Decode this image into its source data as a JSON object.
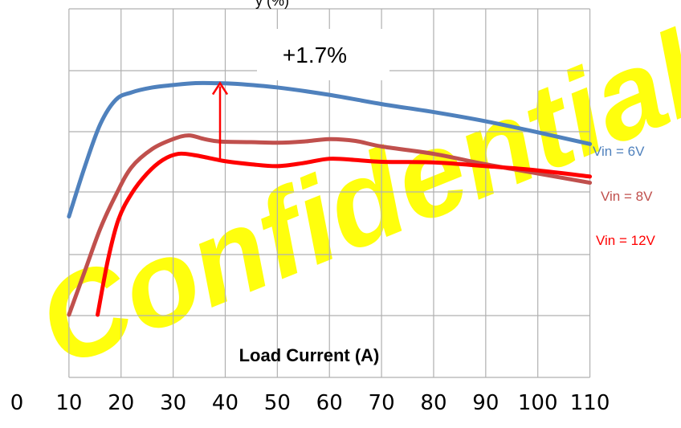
{
  "chart_data": {
    "type": "line",
    "title": "",
    "xlabel": "Load Current (A)",
    "ylabel_fragment": "y (%)",
    "watermark": "Confidential",
    "xlim": [
      0,
      110
    ],
    "x_ticks": [
      "0",
      "10",
      "20",
      "30",
      "40",
      "50",
      "60",
      "70",
      "80",
      "90",
      "100",
      "110"
    ],
    "grid": true,
    "series": [
      {
        "name": "Vin = 6V",
        "color": "#4f81bd",
        "x": [
          10,
          13,
          16,
          19,
          22,
          26,
          30,
          34,
          38,
          42,
          50,
          60,
          70,
          80,
          90,
          100,
          110
        ],
        "y": [
          -0.4,
          0.4,
          1.1,
          1.5,
          1.62,
          1.7,
          1.74,
          1.77,
          1.77,
          1.76,
          1.7,
          1.58,
          1.43,
          1.3,
          1.15,
          0.97,
          0.78
        ]
      },
      {
        "name": "Vin = 8V",
        "color": "#c0504d",
        "x": [
          10,
          13,
          16,
          19,
          22,
          26,
          30,
          33,
          36,
          39,
          45,
          50,
          55,
          60,
          65,
          70,
          80,
          90,
          100,
          110
        ],
        "y": [
          -2.0,
          -1.3,
          -0.6,
          -0.05,
          0.4,
          0.7,
          0.86,
          0.92,
          0.86,
          0.82,
          0.81,
          0.8,
          0.82,
          0.86,
          0.83,
          0.74,
          0.62,
          0.45,
          0.3,
          0.15
        ]
      },
      {
        "name": "Vin = 12V",
        "color": "#ff0000",
        "x": [
          15.5,
          17.5,
          19.5,
          22,
          25,
          28,
          31,
          34,
          37,
          40,
          45,
          50,
          55,
          60,
          65,
          70,
          80,
          90,
          100,
          110
        ],
        "y": [
          -2.0,
          -1.1,
          -0.45,
          -0.03,
          0.3,
          0.52,
          0.62,
          0.6,
          0.55,
          0.5,
          0.45,
          0.42,
          0.47,
          0.54,
          0.52,
          0.49,
          0.48,
          0.42,
          0.35,
          0.25
        ]
      }
    ],
    "annotation": {
      "label": "+1.7%",
      "x": 39,
      "y_from": 0.5,
      "y_to": 1.77,
      "color": "#ff0000"
    }
  }
}
